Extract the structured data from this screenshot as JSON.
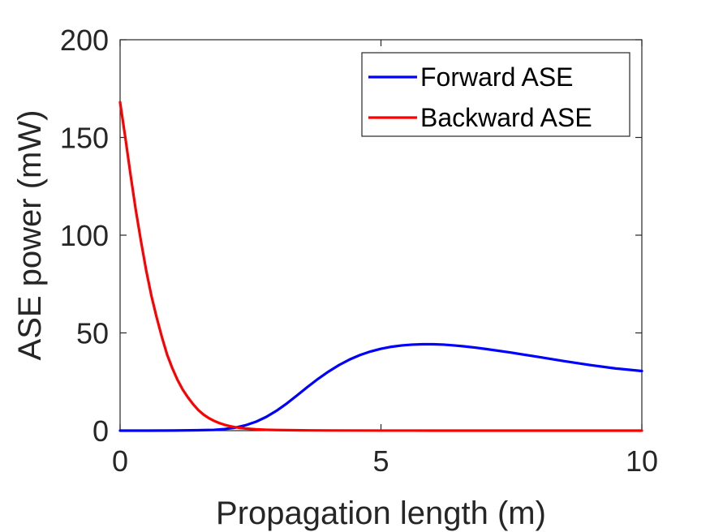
{
  "chart_data": {
    "type": "line",
    "title": "",
    "xlabel": "Propagation length (m)",
    "ylabel": "ASE power (mW)",
    "xlim": [
      0,
      10
    ],
    "ylim": [
      0,
      200
    ],
    "x_ticks": [
      0,
      5,
      10
    ],
    "y_ticks": [
      0,
      50,
      100,
      150,
      200
    ],
    "x_tick_labels": [
      "0",
      "5",
      "10"
    ],
    "y_tick_labels": [
      "0",
      "50",
      "100",
      "150",
      "200"
    ],
    "grid": false,
    "box": true,
    "legend_position": "top-right",
    "series": [
      {
        "name": "Forward ASE",
        "color": "#0000ff",
        "x": [
          0,
          0.5,
          1.0,
          1.5,
          1.8,
          2.0,
          2.2,
          2.4,
          2.6,
          2.8,
          3.0,
          3.2,
          3.4,
          3.6,
          3.8,
          4.0,
          4.2,
          4.4,
          4.6,
          4.8,
          5.0,
          5.2,
          5.4,
          5.6,
          5.8,
          6.0,
          6.2,
          6.4,
          6.6,
          6.8,
          7.0,
          7.5,
          8.0,
          8.5,
          9.0,
          9.5,
          10.0
        ],
        "y": [
          0,
          0,
          0.05,
          0.2,
          0.4,
          0.8,
          1.5,
          2.7,
          4.5,
          7.0,
          10.2,
          14.0,
          18.2,
          22.5,
          26.6,
          30.3,
          33.6,
          36.4,
          38.7,
          40.5,
          41.9,
          42.9,
          43.6,
          44.0,
          44.2,
          44.2,
          44.0,
          43.6,
          43.1,
          42.5,
          41.8,
          39.9,
          37.8,
          35.6,
          33.6,
          31.8,
          30.5
        ]
      },
      {
        "name": "Backward ASE",
        "color": "#ff0000",
        "x": [
          0,
          0.1,
          0.2,
          0.3,
          0.4,
          0.5,
          0.6,
          0.7,
          0.8,
          0.9,
          1.0,
          1.1,
          1.2,
          1.3,
          1.4,
          1.5,
          1.6,
          1.7,
          1.8,
          1.9,
          2.0,
          2.1,
          2.2,
          2.3,
          2.4,
          2.6,
          2.8,
          3.0,
          3.5,
          4.0,
          5.0,
          6.0,
          7.0,
          8.0,
          9.0,
          10.0
        ],
        "y": [
          168,
          150,
          131,
          113,
          97,
          82,
          69,
          58,
          48,
          39,
          32,
          26,
          21,
          17,
          13.5,
          10.5,
          8.2,
          6.4,
          5.0,
          3.9,
          3.0,
          2.3,
          1.8,
          1.4,
          1.1,
          0.7,
          0.45,
          0.3,
          0.15,
          0.08,
          0.03,
          0.01,
          0,
          0,
          0,
          0
        ]
      }
    ]
  }
}
